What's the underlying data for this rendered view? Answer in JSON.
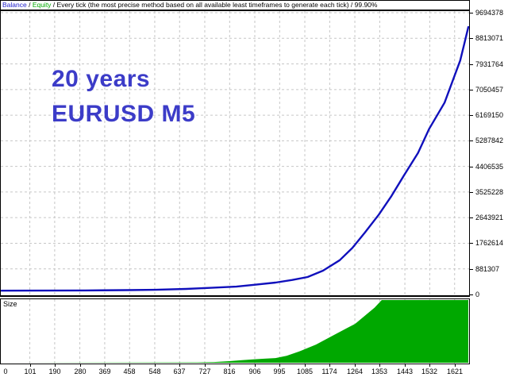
{
  "header": {
    "balance_label": "Balance",
    "sep1": " / ",
    "equity_label": "Equity",
    "rest": " / Every tick (the most precise method based on all available least timeframes to generate each tick) / 99.90%"
  },
  "annotation": {
    "line1": "20 years",
    "line2": "EURUSD M5",
    "color": "#3C3CC8"
  },
  "size_panel": {
    "label": "Size"
  },
  "colors": {
    "balance_line": "#1010BC",
    "equity_label": "#00AA00",
    "balance_label": "#2222CC",
    "size_fill": "#00A800",
    "grid": "#C6C6C6",
    "border": "#000000"
  },
  "chart_data": [
    {
      "type": "line",
      "name": "balance-graph",
      "title": "Strategy tester balance curve",
      "legend": [
        "Balance"
      ],
      "grid": true,
      "x_label_values": [
        0,
        101,
        190,
        280,
        369,
        458,
        548,
        637,
        727,
        816,
        906,
        995,
        1085,
        1174,
        1264,
        1353,
        1443,
        1532,
        1621
      ],
      "y_tick_values": [
        0,
        881307,
        1762614,
        2643921,
        3525228,
        4406535,
        5287842,
        6169150,
        7050457,
        7931764,
        8813071,
        9694378
      ],
      "xlim": [
        0,
        1670
      ],
      "ylim": [
        0,
        9935000
      ],
      "series": [
        {
          "name": "Balance",
          "color": "#1010BC",
          "points": [
            [
              0,
              130000
            ],
            [
              150,
              135000
            ],
            [
              300,
              140000
            ],
            [
              450,
              150000
            ],
            [
              550,
              162000
            ],
            [
              660,
              190000
            ],
            [
              750,
              230000
            ],
            [
              840,
              270000
            ],
            [
              900,
              330000
            ],
            [
              980,
              410000
            ],
            [
              1040,
              500000
            ],
            [
              1095,
              600000
            ],
            [
              1150,
              820000
            ],
            [
              1210,
              1180000
            ],
            [
              1255,
              1600000
            ],
            [
              1300,
              2130000
            ],
            [
              1350,
              2750000
            ],
            [
              1395,
              3390000
            ],
            [
              1440,
              4100000
            ],
            [
              1490,
              4870000
            ],
            [
              1530,
              5700000
            ],
            [
              1585,
              6600000
            ],
            [
              1612,
              7300000
            ],
            [
              1641,
              8050000
            ],
            [
              1655,
              8600000
            ],
            [
              1670,
              9200000
            ]
          ]
        }
      ]
    },
    {
      "type": "area",
      "name": "size-graph",
      "title": "Trade lot size (normalized height, no value axis shown)",
      "fill": "#00A800",
      "xlim": [
        0,
        1670
      ],
      "ylim": [
        0,
        1
      ],
      "points_norm": [
        [
          0,
          0
        ],
        [
          700,
          0.006
        ],
        [
          760,
          0.012
        ],
        [
          815,
          0.025
        ],
        [
          860,
          0.04
        ],
        [
          900,
          0.055
        ],
        [
          940,
          0.065
        ],
        [
          980,
          0.075
        ],
        [
          1020,
          0.11
        ],
        [
          1065,
          0.18
        ],
        [
          1125,
          0.29
        ],
        [
          1180,
          0.42
        ],
        [
          1235,
          0.55
        ],
        [
          1265,
          0.62
        ],
        [
          1300,
          0.75
        ],
        [
          1335,
          0.88
        ],
        [
          1360,
          1.0
        ],
        [
          1670,
          1.0
        ]
      ]
    }
  ]
}
